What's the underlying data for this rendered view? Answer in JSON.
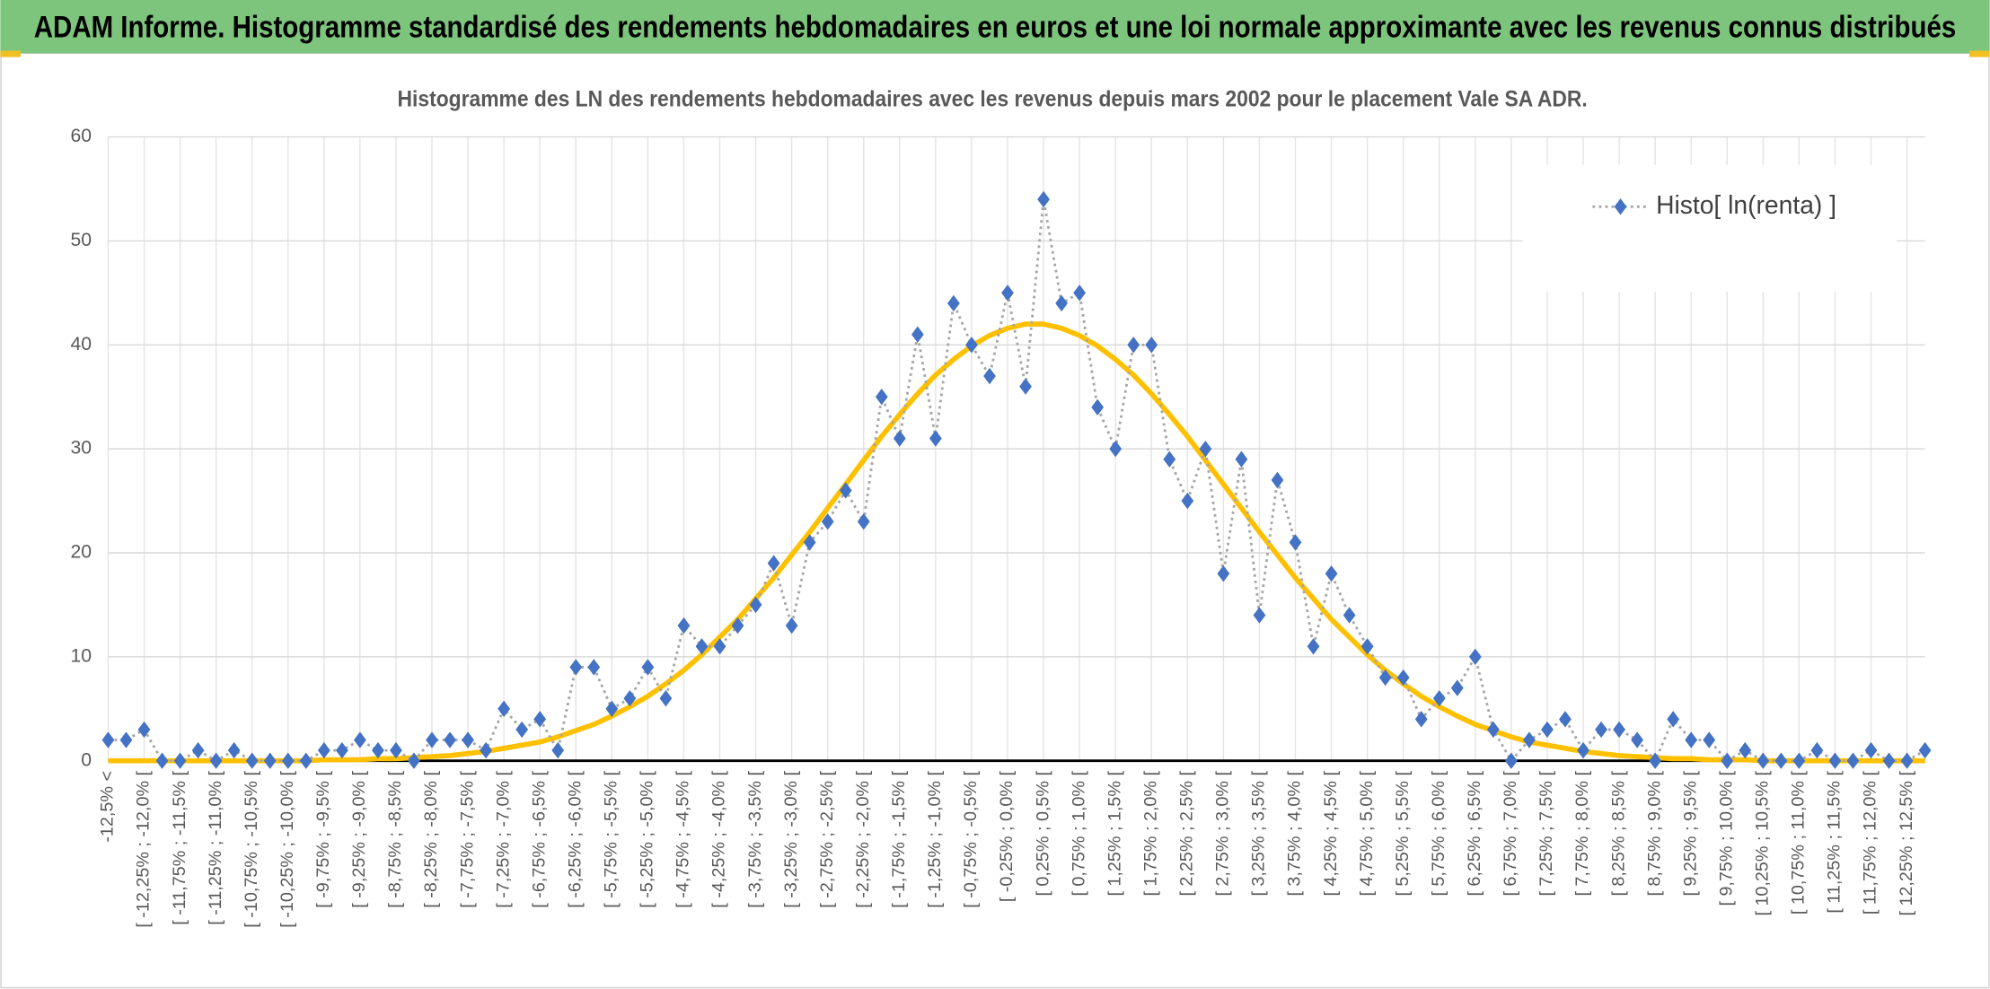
{
  "header": {
    "title": "ADAM Informe. Histogramme standardisé des rendements hebdomadaires en euros et une loi normale approximante avec les revenus connus distribués"
  },
  "chart_data": {
    "type": "line",
    "title": "Histogramme des LN des rendements hebdomadaires avec les revenus depuis mars 2002 pour le placement Vale SA ADR.",
    "categories": [
      "-12,5% <",
      null,
      "[ -12,25% ; -12,0% [",
      null,
      "[ -11,75% ; -11,5% [",
      null,
      "[ -11,25% ; -11,0% [",
      null,
      "[ -10,75% ; -10,5% [",
      null,
      "[ -10,25% ; -10,0% [",
      null,
      "[ -9,75% ; -9,5% [",
      null,
      "[ -9,25% ; -9,0% [",
      null,
      "[ -8,75% ; -8,5% [",
      null,
      "[ -8,25% ; -8,0% [",
      null,
      "[ -7,75% ; -7,5% [",
      null,
      "[ -7,25% ; -7,0% [",
      null,
      "[ -6,75% ; -6,5% [",
      null,
      "[ -6,25% ; -6,0% [",
      null,
      "[ -5,75% ; -5,5% [",
      null,
      "[ -5,25% ; -5,0% [",
      null,
      "[ -4,75% ; -4,5% [",
      null,
      "[ -4,25% ; -4,0% [",
      null,
      "[ -3,75% ; -3,5% [",
      null,
      "[ -3,25% ; -3,0% [",
      null,
      "[ -2,75% ; -2,5% [",
      null,
      "[ -2,25% ; -2,0% [",
      null,
      "[ -1,75% ; -1,5% [",
      null,
      "[ -1,25% ; -1,0% [",
      null,
      "[ -0,75% ; -0,5% [",
      null,
      "[ -0,25% ; 0,0% [",
      null,
      "[ 0,25% ; 0,5% [",
      null,
      "[ 0,75% ; 1,0% [",
      null,
      "[ 1,25% ; 1,5% [",
      null,
      "[ 1,75% ; 2,0% [",
      null,
      "[ 2,25% ; 2,5% [",
      null,
      "[ 2,75% ; 3,0% [",
      null,
      "[ 3,25% ; 3,5% [",
      null,
      "[ 3,75% ; 4,0% [",
      null,
      "[ 4,25% ; 4,5% [",
      null,
      "[ 4,75% ; 5,0% [",
      null,
      "[ 5,25% ; 5,5% [",
      null,
      "[ 5,75% ; 6,0% [",
      null,
      "[ 6,25% ; 6,5% [",
      null,
      "[ 6,75% ; 7,0% [",
      null,
      "[ 7,25% ; 7,5% [",
      null,
      "[ 7,75% ; 8,0% [",
      null,
      "[ 8,25% ; 8,5% [",
      null,
      "[ 8,75% ; 9,0% [",
      null,
      "[ 9,25% ; 9,5% [",
      null,
      "[ 9,75% ; 10,0% [",
      null,
      "[ 10,25% ; 10,5% [",
      null,
      "[ 10,75% ; 11,0% [",
      null,
      "[ 11,25% ; 11,5% [",
      null,
      "[ 11,75% ; 12,0% [",
      null,
      "[ 12,25% ; 12,5% [",
      null
    ],
    "series": [
      {
        "name": "Histo[ ln(renta) ]",
        "color": "#4472c4",
        "values": [
          2,
          2,
          3,
          0,
          0,
          1,
          0,
          1,
          0,
          0,
          0,
          0,
          1,
          1,
          2,
          1,
          1,
          0,
          2,
          2,
          2,
          1,
          5,
          3,
          4,
          1,
          9,
          9,
          5,
          6,
          9,
          6,
          13,
          11,
          11,
          13,
          15,
          19,
          13,
          21,
          23,
          26,
          23,
          35,
          31,
          41,
          31,
          44,
          40,
          37,
          45,
          36,
          54,
          44,
          45,
          34,
          30,
          40,
          40,
          29,
          25,
          30,
          18,
          29,
          14,
          27,
          21,
          11,
          18,
          14,
          11,
          8,
          8,
          4,
          6,
          7,
          10,
          3,
          0,
          2,
          3,
          4,
          1,
          3,
          3,
          2,
          0,
          4,
          2,
          2,
          0,
          1,
          0,
          0,
          0,
          1,
          0,
          0,
          1,
          0,
          0,
          1
        ]
      },
      {
        "color": "#ffc000",
        "values": [
          0,
          0,
          0,
          0,
          0,
          0,
          0,
          0,
          0,
          0,
          0,
          0,
          0.1,
          0.1,
          0.1,
          0.2,
          0.2,
          0.3,
          0.4,
          0.5,
          0.7,
          0.9,
          1.2,
          1.5,
          1.8,
          2.3,
          2.9,
          3.5,
          4.3,
          5.2,
          6.2,
          7.4,
          8.7,
          10.2,
          11.9,
          13.6,
          15.6,
          17.6,
          19.8,
          22.0,
          24.3,
          26.6,
          28.9,
          31.2,
          33.3,
          35.3,
          37.1,
          38.6,
          39.9,
          40.9,
          41.6,
          42.0,
          42.0,
          41.6,
          40.9,
          39.9,
          38.6,
          37.1,
          35.3,
          33.3,
          31.2,
          28.9,
          26.6,
          24.3,
          22.0,
          19.8,
          17.6,
          15.6,
          13.6,
          11.9,
          10.2,
          8.7,
          7.4,
          6.2,
          5.2,
          4.3,
          3.5,
          2.9,
          2.3,
          1.8,
          1.5,
          1.2,
          0.9,
          0.7,
          0.5,
          0.4,
          0.3,
          0.2,
          0.2,
          0.1,
          0.1,
          0.1,
          0,
          0,
          0,
          0,
          0,
          0,
          0,
          0,
          0,
          0
        ]
      }
    ],
    "ylim": [
      0,
      60
    ],
    "yticks": [
      0,
      10,
      20,
      30,
      40,
      50,
      60
    ],
    "grid": true,
    "legend": "top-right"
  }
}
